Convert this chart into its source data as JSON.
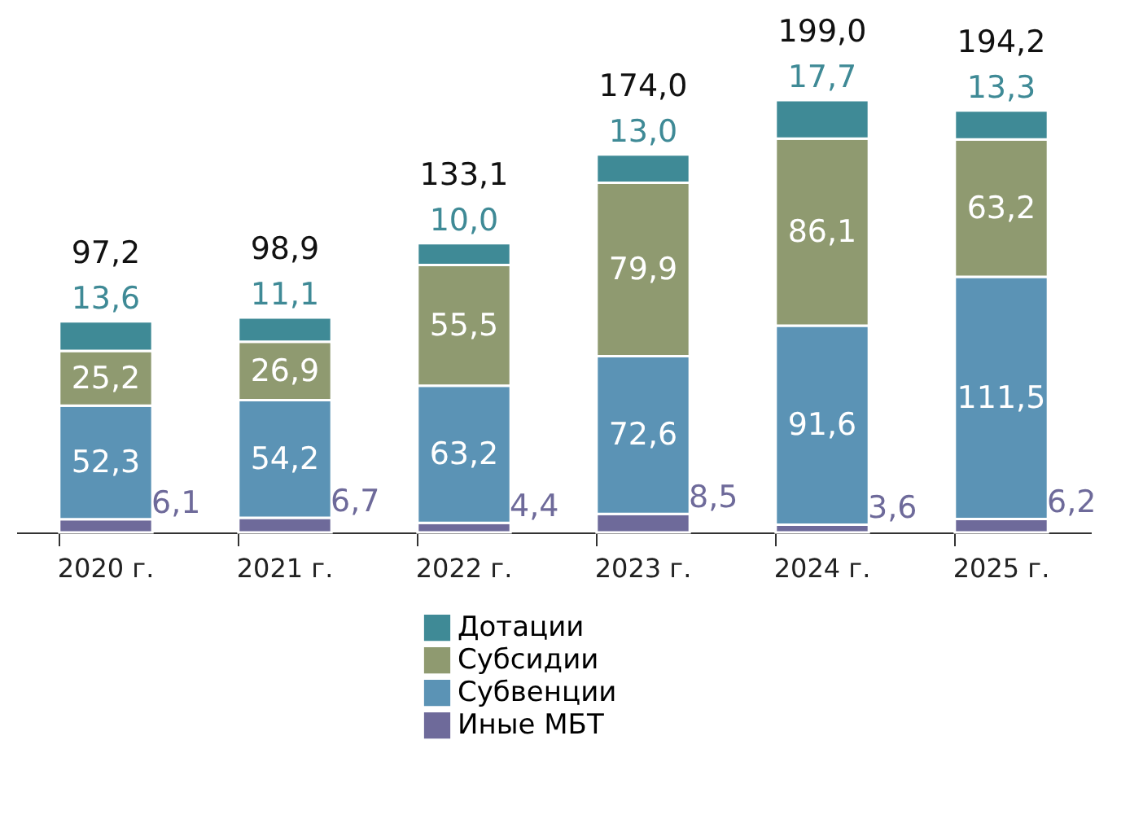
{
  "chart_data": {
    "type": "bar",
    "stacked": true,
    "legend": "bottom",
    "grid": false,
    "categories": [
      "2020 г.",
      "2021 г.",
      "2022 г.",
      "2023 г.",
      "2024 г.",
      "2025 г."
    ],
    "series": [
      {
        "name": "Иные МБТ",
        "color": "#6e6a9a",
        "values": [
          6.1,
          6.7,
          4.4,
          8.5,
          3.6,
          6.2
        ],
        "value_labels": [
          "6,1",
          "6,7",
          "4,4",
          "8,5",
          "3,6",
          "6,2"
        ]
      },
      {
        "name": "Субвенции",
        "color": "#5b93b5",
        "values": [
          52.3,
          54.2,
          63.2,
          72.6,
          91.6,
          111.5
        ],
        "value_labels": [
          "52,3",
          "54,2",
          "63,2",
          "72,6",
          "91,6",
          "111,5"
        ]
      },
      {
        "name": "Субсидии",
        "color": "#8f9a70",
        "values": [
          25.2,
          26.9,
          55.5,
          79.9,
          86.1,
          63.2
        ],
        "value_labels": [
          "25,2",
          "26,9",
          "55,5",
          "79,9",
          "86,1",
          "63,2"
        ]
      },
      {
        "name": "Дотации",
        "color": "#3f8a96",
        "values": [
          13.6,
          11.1,
          10.0,
          13.0,
          17.7,
          13.3
        ],
        "value_labels": [
          "13,6",
          "11,1",
          "10,0",
          "13,0",
          "17,7",
          "13,3"
        ]
      }
    ],
    "totals": [
      "97,2",
      "98,9",
      "133,1",
      "174,0",
      "199,0",
      "194,2"
    ]
  }
}
